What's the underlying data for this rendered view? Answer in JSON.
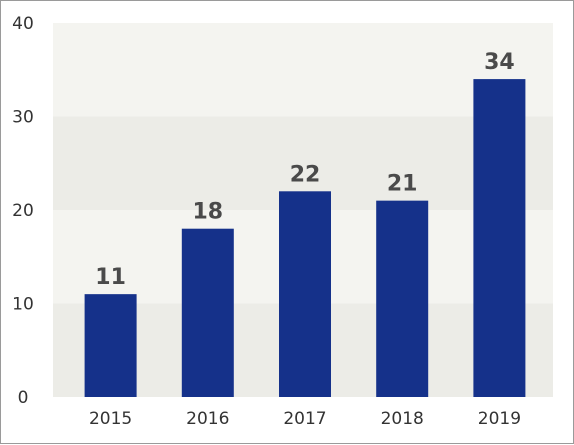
{
  "chart_data": {
    "type": "bar",
    "title": "",
    "xlabel": "",
    "ylabel": "",
    "categories": [
      "2015",
      "2016",
      "2017",
      "2018",
      "2019"
    ],
    "values": [
      11,
      18,
      22,
      21,
      34
    ],
    "ylim": [
      0,
      40
    ],
    "yticks": [
      "0",
      "10",
      "20",
      "30",
      "40"
    ],
    "grid": "alternating horizontal bands",
    "legend": "none",
    "colors": {
      "bar": "#15318a",
      "band_light": "#f4f4f0",
      "band_dark": "#ecece7",
      "label": "#4a4a4a",
      "tick": "#333333"
    }
  }
}
